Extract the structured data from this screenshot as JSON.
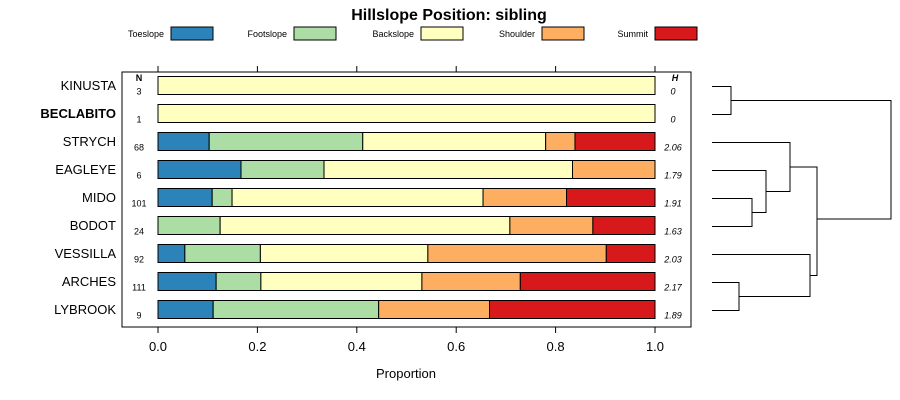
{
  "chart_data": {
    "type": "bar",
    "orientation": "horizontal",
    "stacked": true,
    "title": "Hillslope Position: sibling",
    "xlabel": "Proportion",
    "xlim": [
      0,
      1
    ],
    "x_ticks": [
      "0.0",
      "0.2",
      "0.4",
      "0.6",
      "0.8",
      "1.0"
    ],
    "n_header": "N",
    "h_header": "H",
    "legend_position": "top",
    "series": [
      {
        "name": "Toeslope",
        "color": "#2b83ba"
      },
      {
        "name": "Footslope",
        "color": "#abdda4"
      },
      {
        "name": "Backslope",
        "color": "#ffffbf"
      },
      {
        "name": "Shoulder",
        "color": "#fdae61"
      },
      {
        "name": "Summit",
        "color": "#d7191c"
      }
    ],
    "categories": [
      {
        "name": "KINUSTA",
        "bold": false,
        "n": "3",
        "h": "0",
        "values": [
          0,
          0,
          1.0,
          0,
          0
        ]
      },
      {
        "name": "BECLABITO",
        "bold": true,
        "n": "1",
        "h": "0",
        "values": [
          0,
          0,
          1.0,
          0,
          0
        ]
      },
      {
        "name": "STRYCH",
        "bold": false,
        "n": "68",
        "h": "2.06",
        "values": [
          0.103,
          0.309,
          0.368,
          0.059,
          0.161
        ]
      },
      {
        "name": "EAGLEYE",
        "bold": false,
        "n": "6",
        "h": "1.79",
        "values": [
          0.167,
          0.167,
          0.5,
          0.166,
          0
        ]
      },
      {
        "name": "MIDO",
        "bold": false,
        "n": "101",
        "h": "1.91",
        "values": [
          0.109,
          0.04,
          0.505,
          0.168,
          0.178
        ]
      },
      {
        "name": "BODOT",
        "bold": false,
        "n": "24",
        "h": "1.63",
        "values": [
          0,
          0.125,
          0.583,
          0.167,
          0.125
        ]
      },
      {
        "name": "VESSILLA",
        "bold": false,
        "n": "92",
        "h": "2.03",
        "values": [
          0.054,
          0.152,
          0.337,
          0.359,
          0.098
        ]
      },
      {
        "name": "ARCHES",
        "bold": false,
        "n": "111",
        "h": "2.17",
        "values": [
          0.117,
          0.09,
          0.324,
          0.198,
          0.271
        ]
      },
      {
        "name": "LYBROOK",
        "bold": false,
        "n": "9",
        "h": "1.89",
        "values": [
          0.111,
          0.333,
          0,
          0.223,
          0.333
        ]
      }
    ],
    "dendrogram": {
      "type": "hierarchical-clustering",
      "merges": [
        [
          "KINUSTA",
          "BECLABITO"
        ],
        [
          "MIDO",
          "BODOT"
        ],
        [
          "EAGLEYE",
          "MIDO+BODOT"
        ],
        [
          "STRYCH",
          "EAGLEYE+MIDO+BODOT"
        ],
        [
          "ARCHES",
          "LYBROOK"
        ],
        [
          "VESSILLA",
          "ARCHES+LYBROOK"
        ],
        [
          "STRYCH+EAGLEYE+MIDO+BODOT",
          "VESSILLA+ARCHES+LYBROOK"
        ],
        [
          "KINUSTA+BECLABITO",
          "rest"
        ]
      ]
    }
  }
}
